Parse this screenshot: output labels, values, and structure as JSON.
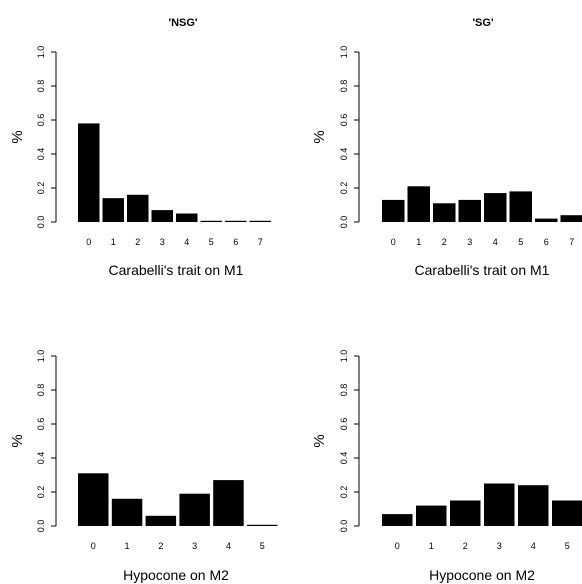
{
  "chart_data": [
    {
      "type": "bar",
      "title": "'NSG'",
      "xlabel": "Carabelli's trait on M1",
      "ylabel": "%",
      "ylim": [
        0,
        1.0
      ],
      "yticks": [
        "0.0",
        "0.2",
        "0.4",
        "0.6",
        "0.8",
        "1.0"
      ],
      "categories": [
        "0",
        "1",
        "2",
        "3",
        "4",
        "5",
        "6",
        "7"
      ],
      "values": [
        0.58,
        0.14,
        0.16,
        0.07,
        0.05,
        0.0,
        0.0,
        0.0
      ]
    },
    {
      "type": "bar",
      "title": "'SG'",
      "xlabel": "Carabelli's trait on M1",
      "ylabel": "%",
      "ylim": [
        0,
        1.0
      ],
      "yticks": [
        "0.0",
        "0.2",
        "0.4",
        "0.6",
        "0.8",
        "1.0"
      ],
      "categories": [
        "0",
        "1",
        "2",
        "3",
        "4",
        "5",
        "6",
        "7"
      ],
      "values": [
        0.13,
        0.21,
        0.11,
        0.13,
        0.17,
        0.18,
        0.02,
        0.04
      ]
    },
    {
      "type": "bar",
      "title": "",
      "xlabel": "Hypocone on M2",
      "ylabel": "%",
      "ylim": [
        0,
        1.0
      ],
      "yticks": [
        "0.0",
        "0.2",
        "0.4",
        "0.6",
        "0.8",
        "1.0"
      ],
      "categories": [
        "0",
        "1",
        "2",
        "3",
        "4",
        "5"
      ],
      "values": [
        0.31,
        0.16,
        0.06,
        0.19,
        0.27,
        0.0
      ]
    },
    {
      "type": "bar",
      "title": "",
      "xlabel": "Hypocone on M2",
      "ylabel": "%",
      "ylim": [
        0,
        1.0
      ],
      "yticks": [
        "0.0",
        "0.2",
        "0.4",
        "0.6",
        "0.8",
        "1.0"
      ],
      "categories": [
        "0",
        "1",
        "2",
        "3",
        "4",
        "5"
      ],
      "values": [
        0.07,
        0.12,
        0.15,
        0.25,
        0.24,
        0.15
      ]
    }
  ],
  "colors": {
    "bar": "#000000",
    "axis": "#000000",
    "background": "#ffffff"
  }
}
